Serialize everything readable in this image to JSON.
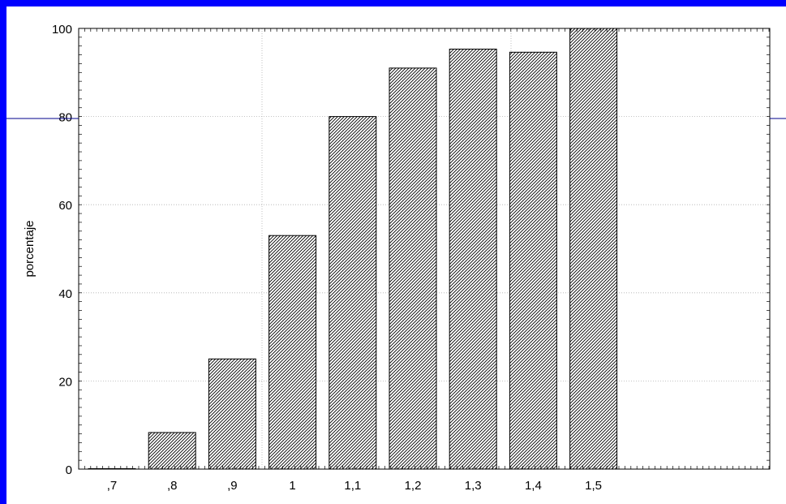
{
  "chart_data": {
    "type": "bar",
    "categories": [
      ",7",
      ",8",
      ",9",
      "1",
      "1,1",
      "1,2",
      "1,3",
      "1,4",
      "1,5"
    ],
    "values": [
      0,
      8.3,
      25,
      53,
      80,
      91,
      95.3,
      94.6,
      100
    ],
    "xlabel": "",
    "ylabel": "porcentaje",
    "ylim": [
      0,
      100
    ],
    "yticks": [
      0,
      20,
      40,
      60,
      80,
      100
    ],
    "grid": true,
    "bar_fill": "diagonal hatch",
    "colors": {
      "frame": "#0000ff",
      "bar_stroke": "#000000",
      "grid": "#b0b0b0",
      "guide_line": "#00008b"
    }
  }
}
